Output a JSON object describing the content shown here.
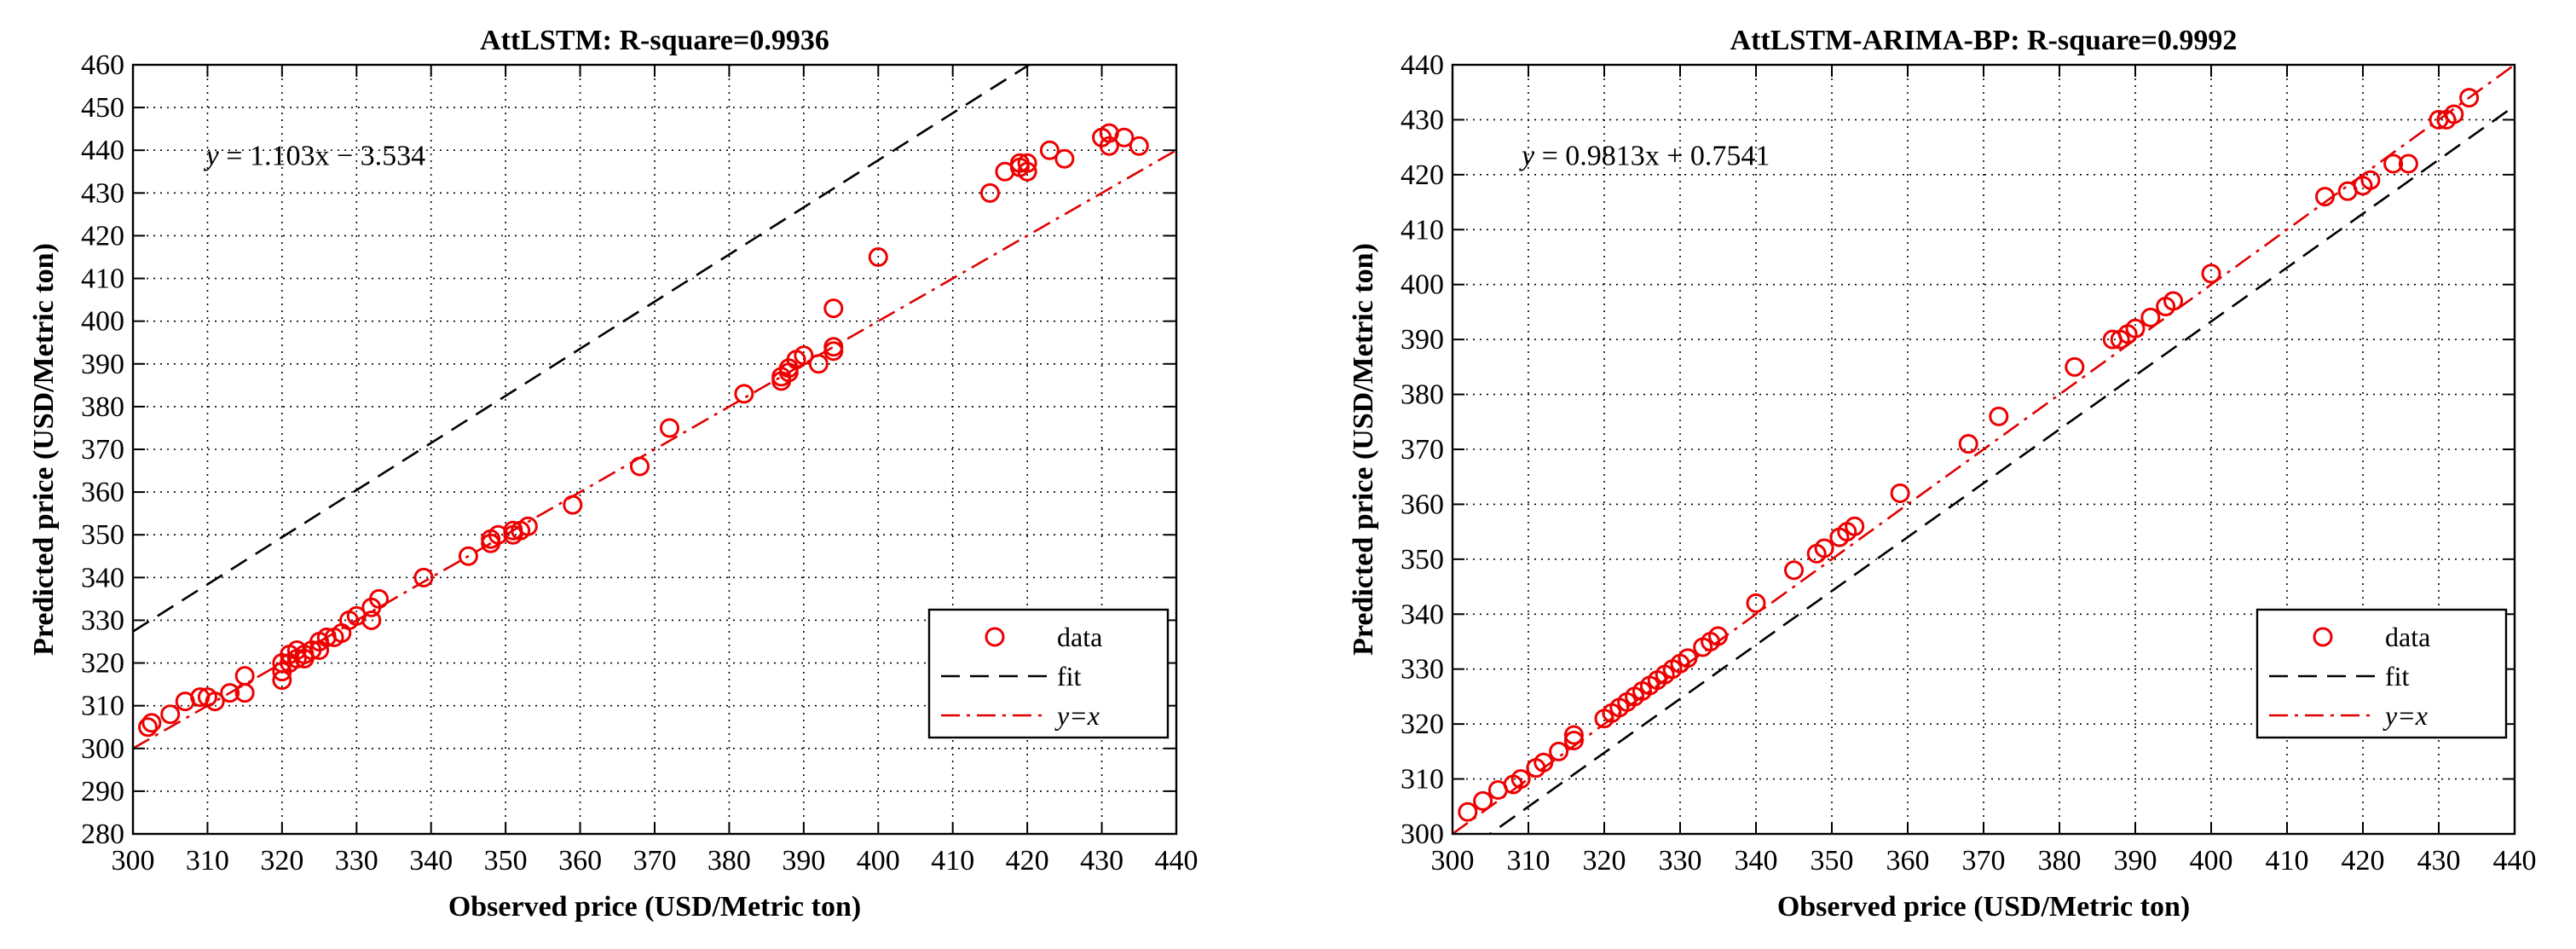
{
  "chart_data": [
    {
      "type": "scatter",
      "title": "AttLSTM: R-square=0.9936",
      "xlabel": "Observed price (USD/Metric ton)",
      "ylabel": "Predicted price (USD/Metric ton)",
      "xlim": [
        300,
        440
      ],
      "ylim": [
        280,
        460
      ],
      "xticks": [
        300,
        310,
        320,
        330,
        340,
        350,
        360,
        370,
        380,
        390,
        400,
        410,
        420,
        430,
        440
      ],
      "yticks": [
        280,
        290,
        300,
        310,
        320,
        330,
        340,
        350,
        360,
        370,
        380,
        390,
        400,
        410,
        420,
        430,
        440,
        450,
        460
      ],
      "grid": true,
      "equation": {
        "prefix": "y",
        "body": " = 1.103x − 3.534"
      },
      "fit": {
        "slope": 1.103,
        "intercept": -3.534
      },
      "legend": {
        "position": "bottom-right",
        "data": "data",
        "fit": "fit",
        "identity_prefix": "y",
        "identity_rest": "=x"
      },
      "points": [
        [
          302,
          305
        ],
        [
          302.5,
          306
        ],
        [
          305,
          308
        ],
        [
          307,
          311
        ],
        [
          309,
          312
        ],
        [
          310,
          312
        ],
        [
          311,
          311
        ],
        [
          313,
          313
        ],
        [
          315,
          313
        ],
        [
          315,
          317
        ],
        [
          320,
          316
        ],
        [
          320,
          318
        ],
        [
          320,
          320
        ],
        [
          321,
          320
        ],
        [
          321,
          322
        ],
        [
          322,
          321
        ],
        [
          322,
          323
        ],
        [
          323,
          321
        ],
        [
          323,
          322
        ],
        [
          324,
          323
        ],
        [
          325,
          323
        ],
        [
          325,
          325
        ],
        [
          326,
          326
        ],
        [
          327,
          326
        ],
        [
          328,
          327
        ],
        [
          329,
          330
        ],
        [
          330,
          331
        ],
        [
          332,
          330
        ],
        [
          332,
          333
        ],
        [
          333,
          335
        ],
        [
          339,
          340
        ],
        [
          345,
          345
        ],
        [
          348,
          348
        ],
        [
          348,
          349
        ],
        [
          349,
          350
        ],
        [
          351,
          350
        ],
        [
          351,
          351
        ],
        [
          352,
          351
        ],
        [
          353,
          352
        ],
        [
          359,
          357
        ],
        [
          368,
          366
        ],
        [
          372,
          375
        ],
        [
          382,
          383
        ],
        [
          387,
          386
        ],
        [
          387,
          387
        ],
        [
          388,
          388
        ],
        [
          388,
          389
        ],
        [
          389,
          391
        ],
        [
          390,
          392
        ],
        [
          392,
          390
        ],
        [
          394,
          393
        ],
        [
          394,
          394
        ],
        [
          394,
          403
        ],
        [
          400,
          415
        ],
        [
          415,
          430
        ],
        [
          417,
          435
        ],
        [
          419,
          436
        ],
        [
          419,
          437
        ],
        [
          420,
          435
        ],
        [
          420,
          437
        ],
        [
          423,
          440
        ],
        [
          425,
          438
        ],
        [
          430,
          443
        ],
        [
          431,
          441
        ],
        [
          431,
          444
        ],
        [
          433,
          443
        ],
        [
          435,
          441
        ]
      ]
    },
    {
      "type": "scatter",
      "title": "AttLSTM-ARIMA-BP: R-square=0.9992",
      "xlabel": "Observed price (USD/Metric ton)",
      "ylabel": "Predicted price (USD/Metric ton)",
      "xlim": [
        300,
        440
      ],
      "ylim": [
        300,
        440
      ],
      "xticks": [
        300,
        310,
        320,
        330,
        340,
        350,
        360,
        370,
        380,
        390,
        400,
        410,
        420,
        430,
        440
      ],
      "yticks": [
        300,
        310,
        320,
        330,
        340,
        350,
        360,
        370,
        380,
        390,
        400,
        410,
        420,
        430,
        440
      ],
      "grid": true,
      "equation": {
        "prefix": "y",
        "body": " = 0.9813x + 0.7541"
      },
      "fit": {
        "slope": 0.9813,
        "intercept": 0.7541
      },
      "legend": {
        "position": "bottom-right",
        "data": "data",
        "fit": "fit",
        "identity_prefix": "y",
        "identity_rest": "=x"
      },
      "points": [
        [
          302,
          304
        ],
        [
          304,
          306
        ],
        [
          306,
          308
        ],
        [
          308,
          309
        ],
        [
          309,
          310
        ],
        [
          311,
          312
        ],
        [
          312,
          313
        ],
        [
          314,
          315
        ],
        [
          316,
          317
        ],
        [
          316,
          318
        ],
        [
          320,
          321
        ],
        [
          321,
          322
        ],
        [
          322,
          323
        ],
        [
          323,
          324
        ],
        [
          324,
          325
        ],
        [
          325,
          326
        ],
        [
          326,
          327
        ],
        [
          327,
          328
        ],
        [
          328,
          329
        ],
        [
          329,
          330
        ],
        [
          330,
          331
        ],
        [
          331,
          332
        ],
        [
          333,
          334
        ],
        [
          334,
          335
        ],
        [
          335,
          336
        ],
        [
          340,
          342
        ],
        [
          345,
          348
        ],
        [
          348,
          351
        ],
        [
          349,
          352
        ],
        [
          351,
          354
        ],
        [
          352,
          355
        ],
        [
          353,
          356
        ],
        [
          359,
          362
        ],
        [
          368,
          371
        ],
        [
          372,
          376
        ],
        [
          382,
          385
        ],
        [
          387,
          390
        ],
        [
          388,
          390
        ],
        [
          389,
          391
        ],
        [
          390,
          392
        ],
        [
          392,
          394
        ],
        [
          394,
          396
        ],
        [
          395,
          397
        ],
        [
          400,
          402
        ],
        [
          415,
          416
        ],
        [
          418,
          417
        ],
        [
          420,
          418
        ],
        [
          421,
          419
        ],
        [
          424,
          422
        ],
        [
          426,
          422
        ],
        [
          430,
          430
        ],
        [
          431,
          430
        ],
        [
          432,
          431
        ],
        [
          434,
          434
        ]
      ]
    }
  ]
}
